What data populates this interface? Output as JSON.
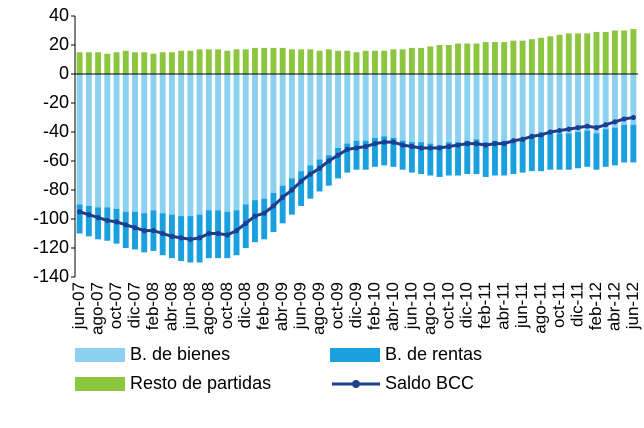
{
  "chart_data": {
    "type": "stacked-bar-line",
    "categories": [
      "jun-07",
      null,
      "ago-07",
      null,
      "oct-07",
      null,
      "dic-07",
      null,
      "feb-08",
      null,
      "abr-08",
      null,
      "jun-08",
      null,
      "ago-08",
      null,
      "oct-08",
      null,
      "dic-08",
      null,
      "feb-09",
      null,
      "abr-09",
      null,
      "jun-09",
      null,
      "ago-09",
      null,
      "oct-09",
      null,
      "dic-09",
      null,
      "feb-10",
      null,
      "abr-10",
      null,
      "jun-10",
      null,
      "ago-10",
      null,
      "oct-10",
      null,
      "dic-10",
      null,
      "feb-11",
      null,
      "abr-11",
      null,
      "jun-11",
      null,
      "ago-11",
      null,
      "oct-11",
      null,
      "dic-11",
      null,
      "feb-12",
      null,
      "abr-12",
      null,
      "jun-12"
    ],
    "series": [
      {
        "name": "B. de bienes",
        "color": "#8dd1f1",
        "kind": "bar",
        "values": [
          -90,
          -91,
          -92,
          -92,
          -93,
          -95,
          -95,
          -96,
          -94,
          -96,
          -97,
          -98,
          -98,
          -97,
          -94,
          -94,
          -95,
          -94,
          -90,
          -87,
          -86,
          -82,
          -77,
          -72,
          -67,
          -63,
          -59,
          -56,
          -51,
          -48,
          -46,
          -46,
          -44,
          -43,
          -44,
          -46,
          -47,
          -47,
          -48,
          -49,
          -47,
          -47,
          -46,
          -45,
          -47,
          -46,
          -46,
          -45,
          -44,
          -43,
          -42,
          -41,
          -41,
          -41,
          -40,
          -39,
          -41,
          -38,
          -37,
          -35,
          -35
        ]
      },
      {
        "name": "B. de rentas",
        "color": "#1a9fdf",
        "kind": "bar",
        "values": [
          -20,
          -21,
          -22,
          -23,
          -24,
          -25,
          -26,
          -27,
          -28,
          -29,
          -30,
          -31,
          -32,
          -33,
          -33,
          -33,
          -32,
          -31,
          -30,
          -29,
          -28,
          -27,
          -26,
          -25,
          -24,
          -23,
          -22,
          -21,
          -21,
          -20,
          -20,
          -20,
          -20,
          -20,
          -20,
          -20,
          -21,
          -22,
          -22,
          -22,
          -23,
          -23,
          -23,
          -24,
          -24,
          -24,
          -24,
          -24,
          -24,
          -24,
          -25,
          -25,
          -25,
          -25,
          -25,
          -25,
          -25,
          -26,
          -26,
          -26,
          -26
        ]
      },
      {
        "name": "Resto de partidas",
        "color": "#8cc63f",
        "kind": "bar",
        "values": [
          15,
          15,
          15,
          14,
          15,
          16,
          15,
          15,
          14,
          15,
          15,
          16,
          16,
          17,
          17,
          17,
          16,
          17,
          17,
          18,
          18,
          18,
          18,
          17,
          17,
          17,
          16,
          17,
          16,
          16,
          15,
          16,
          16,
          16,
          17,
          17,
          18,
          18,
          19,
          20,
          20,
          21,
          21,
          21,
          22,
          22,
          22,
          23,
          23,
          24,
          25,
          26,
          27,
          28,
          28,
          28,
          29,
          29,
          30,
          30,
          31
        ]
      },
      {
        "name": "Saldo BCC",
        "color": "#1c3f8f",
        "kind": "line",
        "values": [
          -95,
          -97,
          -99,
          -101,
          -102,
          -104,
          -106,
          -108,
          -108,
          -110,
          -112,
          -113,
          -114,
          -113,
          -110,
          -110,
          -111,
          -108,
          -103,
          -98,
          -96,
          -91,
          -85,
          -80,
          -74,
          -69,
          -65,
          -60,
          -56,
          -52,
          -51,
          -50,
          -48,
          -47,
          -47,
          -49,
          -50,
          -51,
          -51,
          -51,
          -50,
          -49,
          -48,
          -48,
          -49,
          -48,
          -48,
          -46,
          -45,
          -43,
          -42,
          -40,
          -39,
          -38,
          -37,
          -36,
          -37,
          -35,
          -33,
          -31,
          -30
        ]
      }
    ],
    "ylim": [
      -140,
      40
    ],
    "yticks": [
      -140,
      -120,
      -100,
      -80,
      -60,
      -40,
      -20,
      0,
      20,
      40
    ],
    "grid": false,
    "legend": "bottom"
  }
}
